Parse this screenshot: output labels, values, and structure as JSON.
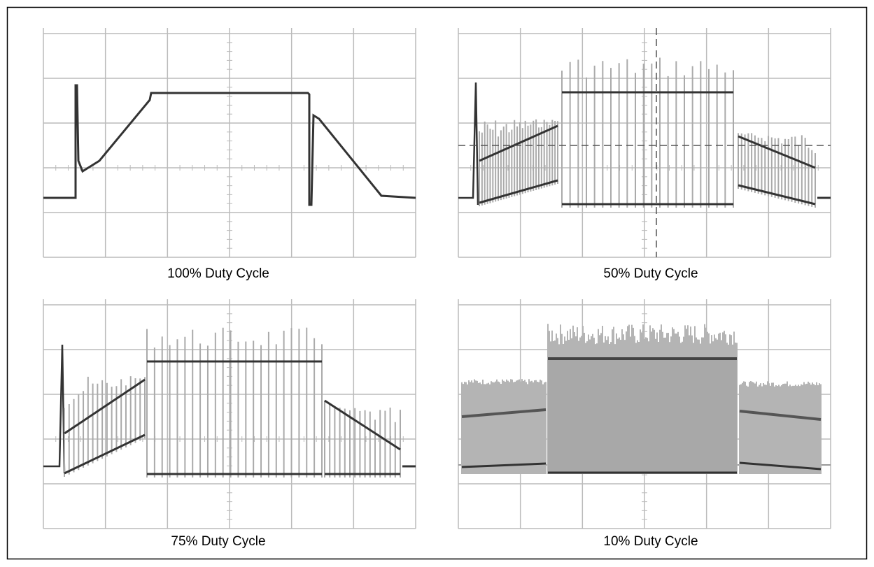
{
  "panels": [
    {
      "caption": "100% Duty Cycle"
    },
    {
      "caption": "50% Duty Cycle"
    },
    {
      "caption": "75% Duty Cycle"
    },
    {
      "caption": "10% Duty Cycle"
    }
  ]
}
